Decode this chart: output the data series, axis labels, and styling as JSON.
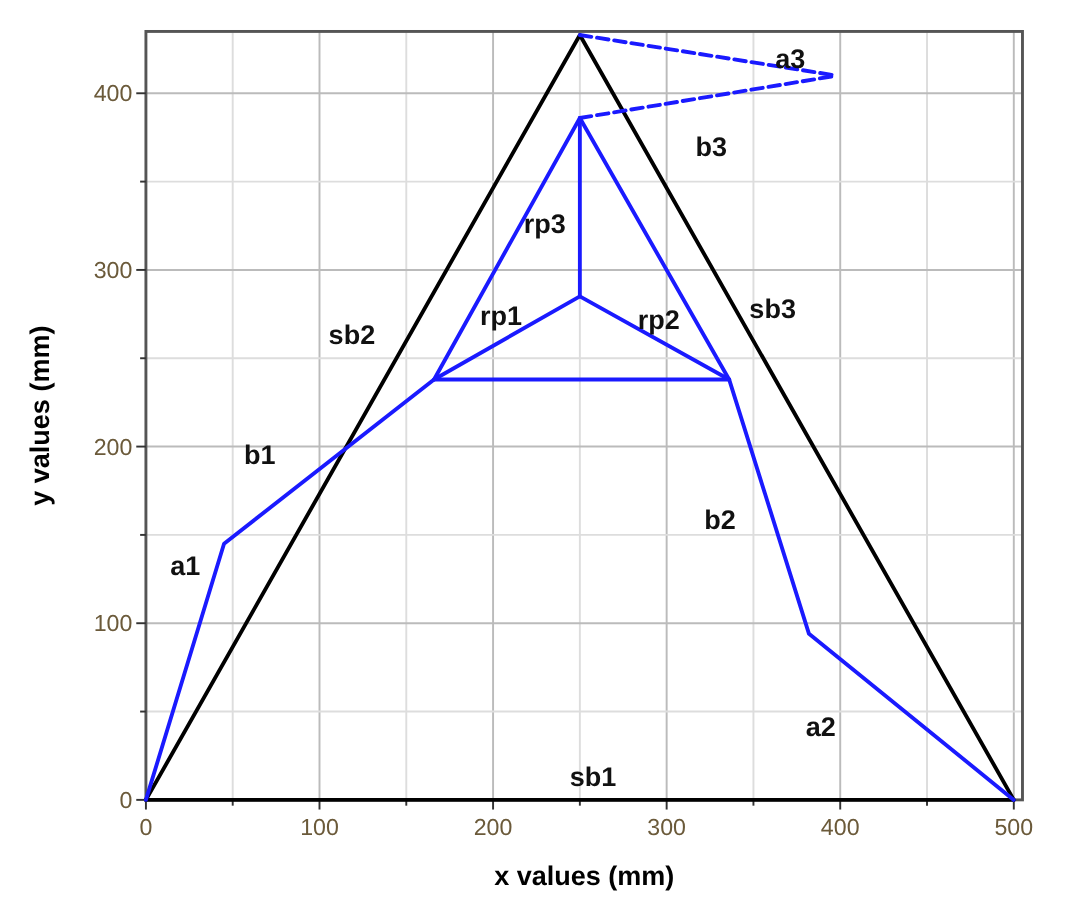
{
  "chart_data": {
    "type": "line",
    "xlabel": "x values (mm)",
    "ylabel": "y values (mm)",
    "xlim": [
      0,
      505
    ],
    "ylim": [
      0,
      435
    ],
    "xticks": [
      0,
      {
        "value": 50,
        "label": null
      },
      100,
      {
        "value": 150,
        "label": null
      },
      200,
      {
        "value": 250,
        "label": null
      },
      300,
      {
        "value": 350,
        "label": null
      },
      400,
      {
        "value": 450,
        "label": null
      },
      500
    ],
    "yticks": [
      0,
      {
        "value": 50,
        "label": null
      },
      100,
      {
        "value": 150,
        "label": null
      },
      200,
      {
        "value": 250,
        "label": null
      },
      300,
      {
        "value": 350,
        "label": null
      },
      400
    ],
    "grid": true,
    "marker": "none",
    "series": [
      {
        "color": "#000000",
        "line_style": "solid",
        "x": [
          0,
          250,
          500
        ],
        "values": [
          0,
          433,
          0
        ]
      },
      {
        "color": "#000000",
        "line_style": "solid",
        "x": [
          0,
          500
        ],
        "values": [
          0,
          0
        ]
      },
      {
        "color": "#1a1aff",
        "line_style": "solid",
        "x": [
          0,
          45,
          166,
          250,
          336,
          382,
          500
        ],
        "values": [
          0,
          145,
          238,
          386,
          238,
          94,
          0
        ]
      },
      {
        "color": "#1a1aff",
        "line_style": "solid",
        "x": [
          166,
          336
        ],
        "values": [
          238,
          238
        ]
      },
      {
        "color": "#1a1aff",
        "line_style": "solid",
        "x": [
          166,
          250,
          336
        ],
        "values": [
          238,
          285,
          238
        ]
      },
      {
        "color": "#1a1aff",
        "line_style": "solid",
        "x": [
          250,
          250
        ],
        "values": [
          285,
          386
        ]
      },
      {
        "color": "#1a1aff",
        "line_style": "dashed",
        "x": [
          250,
          398
        ],
        "values": [
          386,
          410
        ]
      },
      {
        "color": "#1a1aff",
        "line_style": "dashed",
        "x": [
          250,
          398
        ],
        "values": [
          433,
          410
        ]
      }
    ],
    "annotations": [
      "a1",
      "b1",
      "sb2",
      "rp1",
      "rp3",
      "rp2",
      "sb3",
      "b3",
      "a3",
      "b2",
      "a2",
      "sb1"
    ]
  }
}
